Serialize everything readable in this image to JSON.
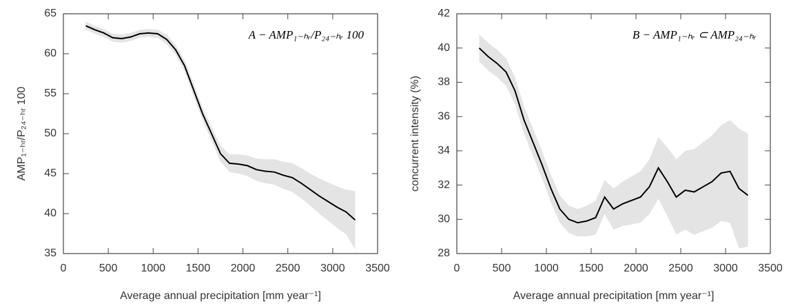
{
  "chart_data": [
    {
      "type": "line",
      "annotation": "A − AMP₁₋ₕᵣ/P₂₄₋ₕᵣ 100",
      "ylabel": "AMP₁₋ₕᵣ/P₂₄₋ₕᵣ 100",
      "xlabel": "Average annual precipitation [mm year⁻¹]",
      "xlim": [
        0,
        3500
      ],
      "xticks": [
        0,
        500,
        1000,
        1500,
        2000,
        2500,
        3000,
        3500
      ],
      "ylim": [
        35,
        65
      ],
      "yticks": [
        35,
        40,
        45,
        50,
        55,
        60,
        65
      ],
      "x": [
        250,
        350,
        450,
        550,
        650,
        750,
        850,
        950,
        1050,
        1150,
        1250,
        1350,
        1450,
        1550,
        1650,
        1750,
        1850,
        1950,
        2050,
        2150,
        2250,
        2350,
        2450,
        2550,
        2650,
        2750,
        2850,
        2950,
        3050,
        3150,
        3250
      ],
      "series": [
        {
          "color": "#000000",
          "values": [
            63.5,
            63.0,
            62.6,
            62.0,
            61.9,
            62.1,
            62.5,
            62.6,
            62.5,
            61.8,
            60.5,
            58.5,
            55.5,
            52.5,
            50.0,
            47.5,
            46.3,
            46.2,
            46.0,
            45.5,
            45.3,
            45.2,
            44.8,
            44.5,
            43.8,
            43.0,
            42.2,
            41.5,
            40.8,
            40.2,
            39.2
          ]
        }
      ],
      "band": {
        "color": "#e4e4e4",
        "upper": [
          64.0,
          63.5,
          63.1,
          62.5,
          62.4,
          62.6,
          63.0,
          63.1,
          63.0,
          62.4,
          61.1,
          59.2,
          56.3,
          53.3,
          50.9,
          48.5,
          47.4,
          47.4,
          47.3,
          46.9,
          46.8,
          46.8,
          46.5,
          46.3,
          45.7,
          45.0,
          44.4,
          43.9,
          43.4,
          43.0,
          42.8
        ],
        "lower": [
          63.0,
          62.5,
          62.1,
          61.5,
          61.4,
          61.6,
          62.0,
          62.1,
          62.0,
          61.2,
          59.9,
          57.8,
          54.7,
          51.7,
          49.1,
          46.5,
          45.2,
          45.0,
          44.7,
          44.1,
          43.8,
          43.6,
          43.1,
          42.7,
          41.9,
          41.0,
          40.0,
          39.1,
          38.2,
          37.4,
          35.5
        ]
      }
    },
    {
      "type": "line",
      "annotation": "B − AMP₁₋ₕᵣ ⊂ AMP₂₄₋ₕᵣ",
      "ylabel": "concurrent intensity (%)",
      "xlabel": "Average annual precipitation [mm year⁻¹]",
      "xlim": [
        0,
        3500
      ],
      "xticks": [
        0,
        500,
        1000,
        1500,
        2000,
        2500,
        3000,
        3500
      ],
      "ylim": [
        28,
        42
      ],
      "yticks": [
        28,
        30,
        32,
        34,
        36,
        38,
        40,
        42
      ],
      "x": [
        250,
        350,
        450,
        550,
        650,
        750,
        850,
        950,
        1050,
        1150,
        1250,
        1350,
        1450,
        1550,
        1650,
        1750,
        1850,
        1950,
        2050,
        2150,
        2250,
        2350,
        2450,
        2550,
        2650,
        2750,
        2850,
        2950,
        3050,
        3150,
        3250
      ],
      "series": [
        {
          "color": "#000000",
          "values": [
            40.0,
            39.5,
            39.1,
            38.6,
            37.5,
            35.8,
            34.5,
            33.2,
            31.8,
            30.6,
            30.0,
            29.8,
            29.9,
            30.1,
            31.3,
            30.6,
            30.9,
            31.1,
            31.3,
            31.9,
            33.0,
            32.2,
            31.3,
            31.7,
            31.6,
            31.9,
            32.2,
            32.7,
            32.8,
            31.8,
            31.4
          ]
        }
      ],
      "band": {
        "color": "#e4e4e4",
        "upper": [
          40.8,
          40.3,
          39.9,
          39.4,
          38.3,
          36.6,
          35.3,
          34.0,
          32.6,
          31.4,
          30.8,
          30.6,
          30.8,
          31.1,
          32.3,
          31.8,
          32.2,
          32.5,
          32.8,
          33.5,
          34.8,
          34.2,
          33.5,
          34.0,
          34.1,
          34.5,
          34.9,
          35.5,
          35.8,
          35.3,
          35.0
        ],
        "lower": [
          39.2,
          38.7,
          38.3,
          37.8,
          36.7,
          35.0,
          33.7,
          32.4,
          31.0,
          29.8,
          29.2,
          29.0,
          29.0,
          29.1,
          30.3,
          29.4,
          29.6,
          29.7,
          29.8,
          30.3,
          31.2,
          30.2,
          29.1,
          29.4,
          29.1,
          29.3,
          29.5,
          29.9,
          29.8,
          28.3,
          28.4
        ]
      }
    }
  ]
}
